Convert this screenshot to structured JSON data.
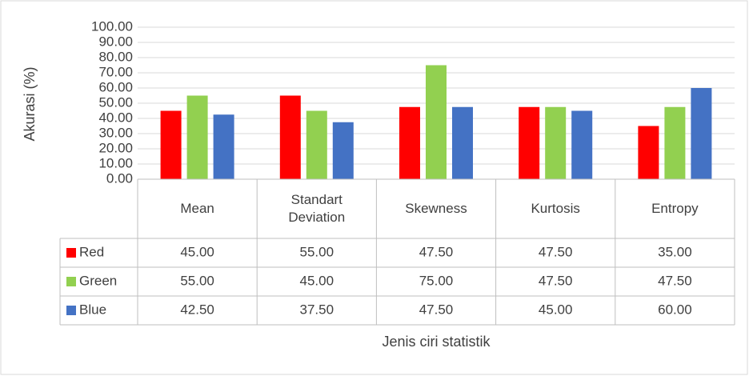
{
  "chart_data": {
    "type": "bar",
    "categories": [
      "Mean",
      "Standart Deviation",
      "Skewness",
      "Kurtosis",
      "Entropy"
    ],
    "series": [
      {
        "name": "Red",
        "color": "#ff0000",
        "values": [
          45,
          55,
          47.5,
          47.5,
          35
        ],
        "value_labels": [
          "45.00",
          "55.00",
          "47.50",
          "47.50",
          "35.00"
        ]
      },
      {
        "name": "Green",
        "color": "#92d050",
        "values": [
          55,
          45,
          75,
          47.5,
          47.5
        ],
        "value_labels": [
          "55.00",
          "45.00",
          "75.00",
          "47.50",
          "47.50"
        ]
      },
      {
        "name": "Blue",
        "color": "#4472c4",
        "values": [
          42.5,
          37.5,
          47.5,
          45,
          60
        ],
        "value_labels": [
          "42.50",
          "37.50",
          "47.50",
          "45.00",
          "60.00"
        ]
      }
    ],
    "y_label": "Akurasi (%)",
    "x_label": "Jenis ciri statistik",
    "ylim": [
      0,
      100
    ],
    "yticks": [
      {
        "value": 0,
        "label": "0.00"
      },
      {
        "value": 10,
        "label": "10.00"
      },
      {
        "value": 20,
        "label": "20.00"
      },
      {
        "value": 30,
        "label": "30.00"
      },
      {
        "value": 40,
        "label": "40.00"
      },
      {
        "value": 50,
        "label": "50.00"
      },
      {
        "value": 60,
        "label": "60.00"
      },
      {
        "value": 70,
        "label": "70.00"
      },
      {
        "value": 80,
        "label": "80.00"
      },
      {
        "value": 90,
        "label": "90.00"
      },
      {
        "value": 100,
        "label": "100.00"
      }
    ],
    "grid": true,
    "data_table": true
  }
}
